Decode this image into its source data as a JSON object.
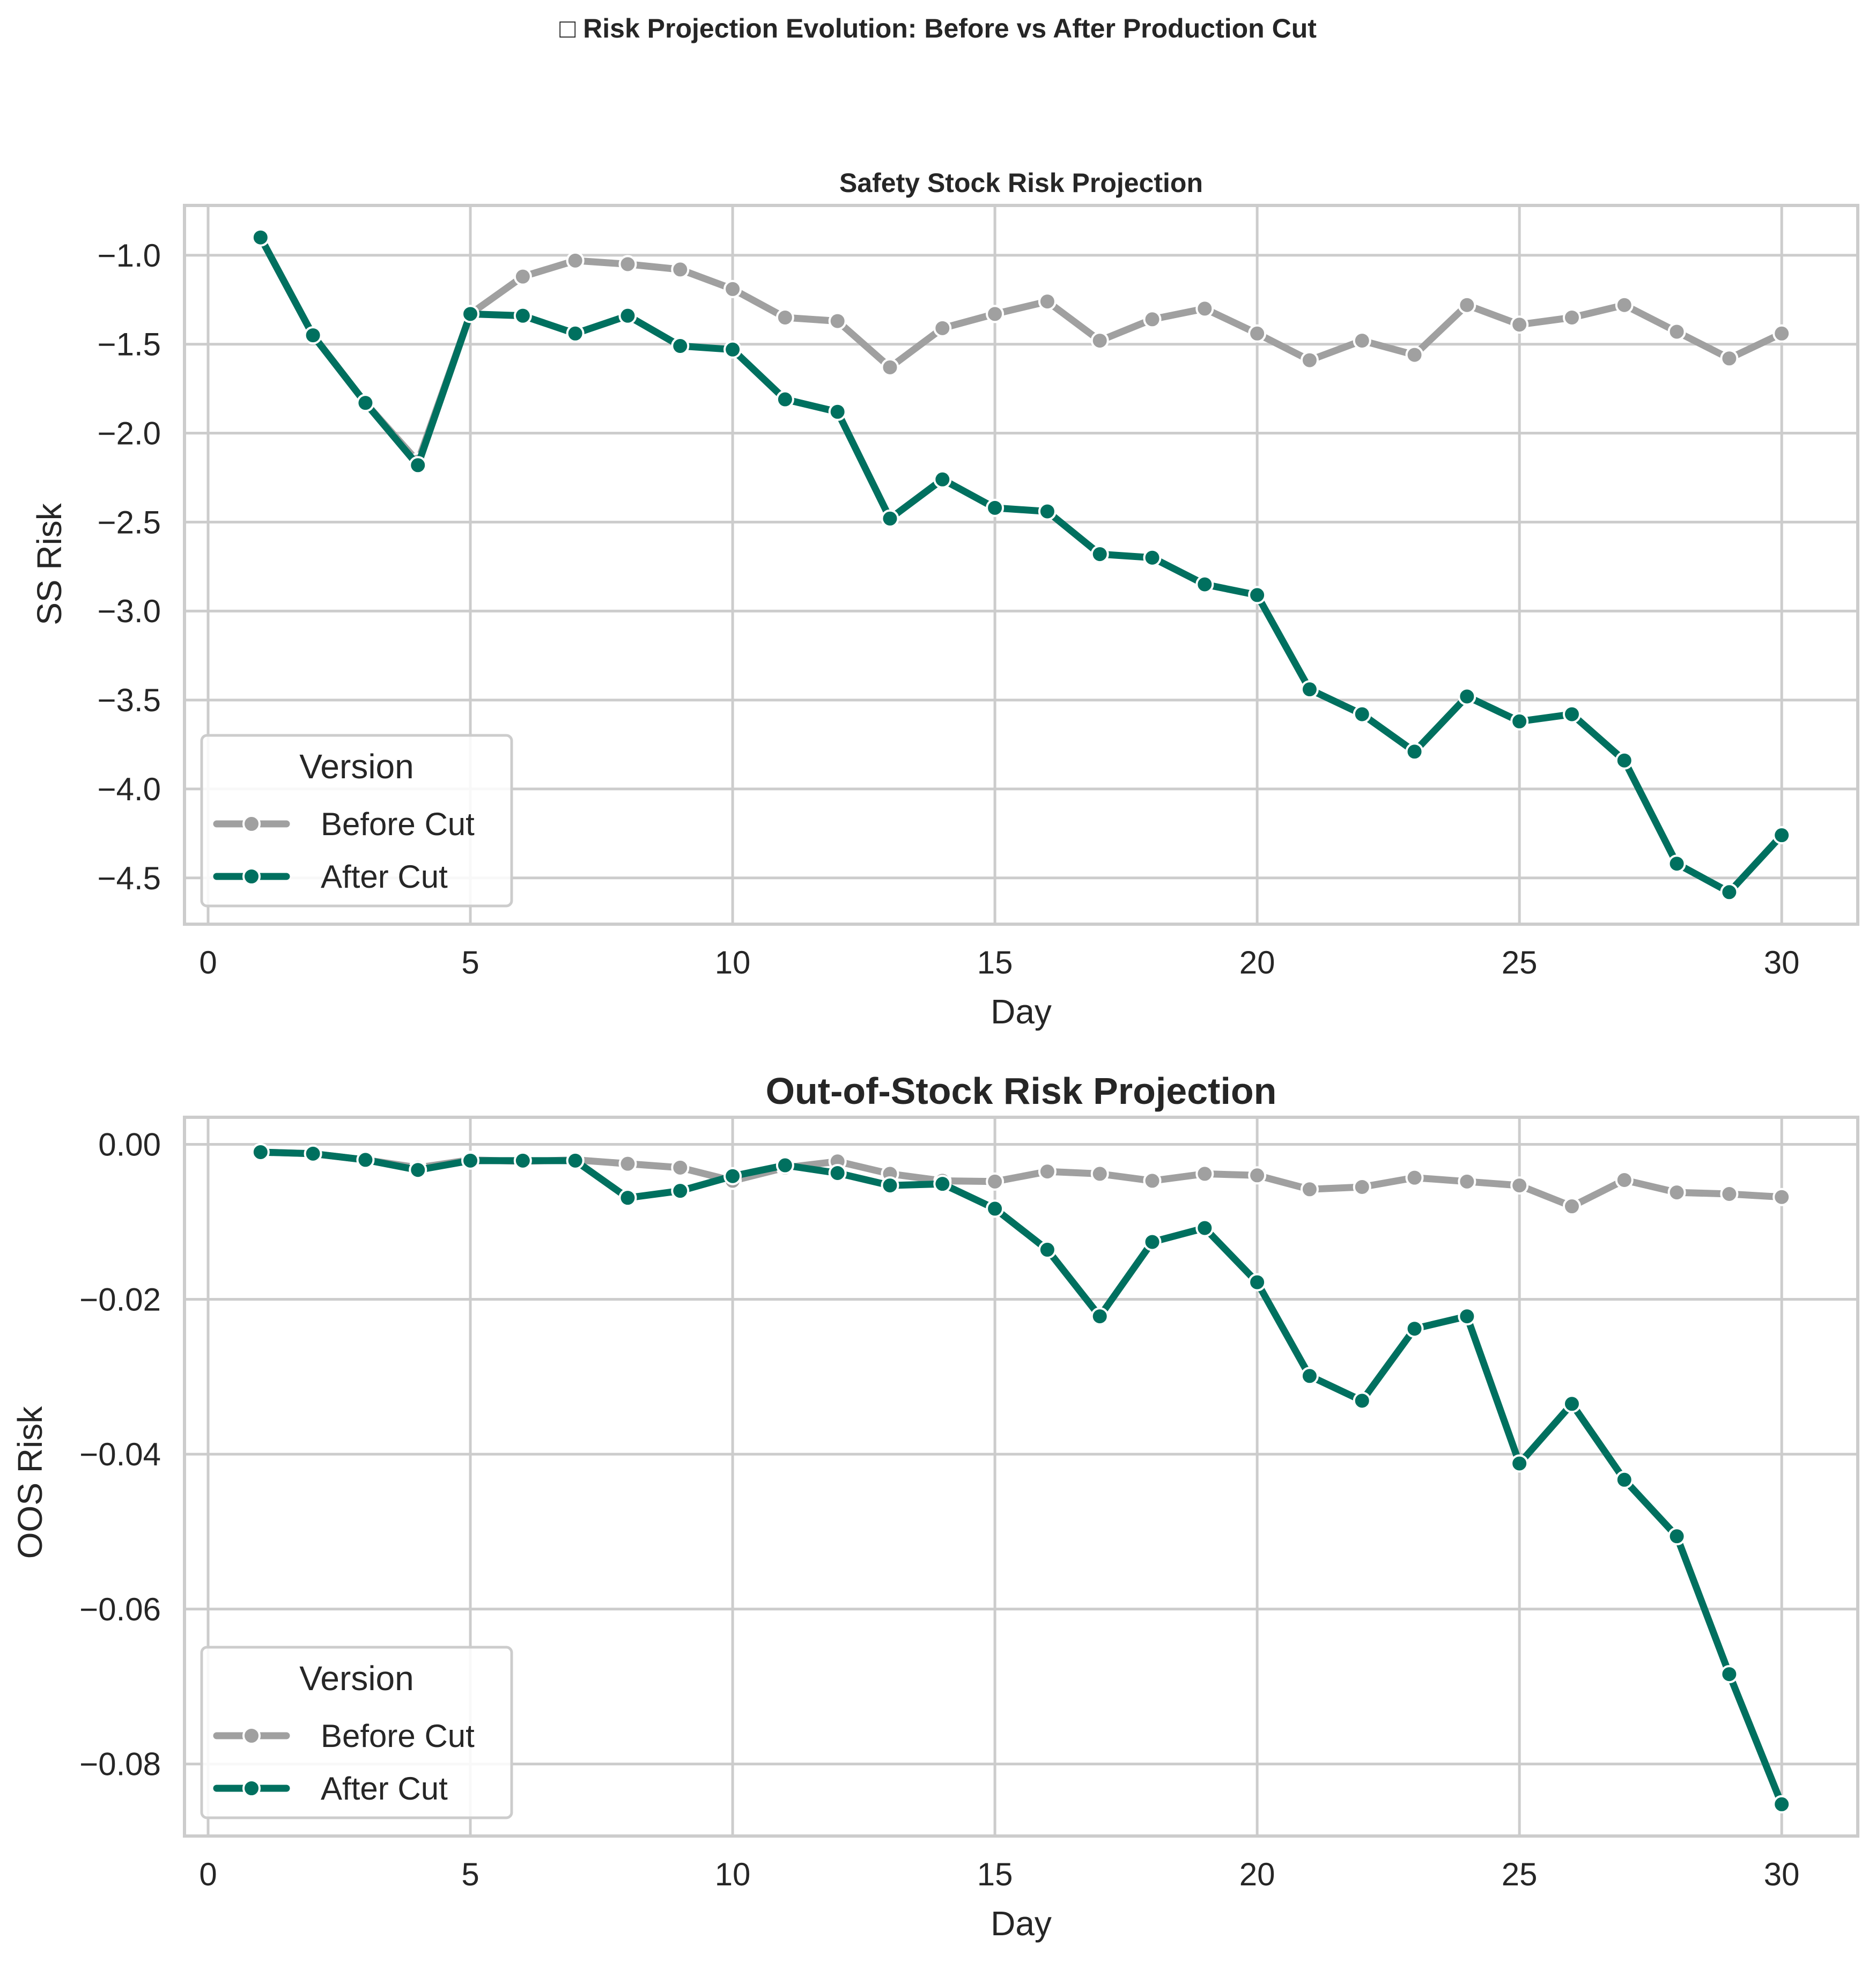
{
  "figure_title": "□ Risk Projection Evolution: Before vs After Production Cut",
  "colors": {
    "before": "#a0a0a0",
    "after": "#00705f",
    "grid": "#cccccc",
    "spine": "#cccccc",
    "text": "#262626"
  },
  "chart_data": [
    {
      "type": "line",
      "title": "Safety Stock Risk Projection",
      "xlabel": "Day",
      "ylabel": "SS Risk",
      "xlim": [
        -0.45,
        31.45
      ],
      "ylim": [
        -4.76,
        -0.72
      ],
      "xticks": [
        0,
        5,
        10,
        15,
        20,
        25,
        30
      ],
      "xtick_labels": [
        "0",
        "5",
        "10",
        "15",
        "20",
        "25",
        "30"
      ],
      "yticks": [
        -1.0,
        -1.5,
        -2.0,
        -2.5,
        -3.0,
        -3.5,
        -4.0,
        -4.5
      ],
      "ytick_labels": [
        "−1.0",
        "−1.5",
        "−2.0",
        "−2.5",
        "−3.0",
        "−3.5",
        "−4.0",
        "−4.5"
      ],
      "grid": true,
      "legend": {
        "title": "Version",
        "placement": "lower-left"
      },
      "x": [
        1,
        2,
        3,
        4,
        5,
        6,
        7,
        8,
        9,
        10,
        11,
        12,
        13,
        14,
        15,
        16,
        17,
        18,
        19,
        20,
        21,
        22,
        23,
        24,
        25,
        26,
        27,
        28,
        29,
        30
      ],
      "series": [
        {
          "name": "Before Cut",
          "color": "#a0a0a0",
          "values": [
            -0.9,
            -1.45,
            -1.83,
            -2.16,
            -1.33,
            -1.12,
            -1.03,
            -1.05,
            -1.08,
            -1.19,
            -1.35,
            -1.37,
            -1.63,
            -1.41,
            -1.33,
            -1.26,
            -1.48,
            -1.36,
            -1.3,
            -1.44,
            -1.59,
            -1.48,
            -1.56,
            -1.28,
            -1.39,
            -1.35,
            -1.28,
            -1.43,
            -1.58,
            -1.44
          ]
        },
        {
          "name": "After Cut",
          "color": "#00705f",
          "values": [
            -0.9,
            -1.45,
            -1.83,
            -2.18,
            -1.33,
            -1.34,
            -1.44,
            -1.34,
            -1.51,
            -1.53,
            -1.81,
            -1.88,
            -2.48,
            -2.26,
            -2.42,
            -2.44,
            -2.68,
            -2.7,
            -2.85,
            -2.91,
            -3.44,
            -3.58,
            -3.79,
            -3.48,
            -3.62,
            -3.58,
            -3.84,
            -4.42,
            -4.58,
            -4.26
          ]
        }
      ]
    },
    {
      "type": "line",
      "title": "Out-of-Stock Risk Projection",
      "xlabel": "Day",
      "ylabel": "OOS Risk",
      "xlim": [
        -0.45,
        31.45
      ],
      "ylim": [
        -0.0893,
        0.0035
      ],
      "xticks": [
        0,
        5,
        10,
        15,
        20,
        25,
        30
      ],
      "xtick_labels": [
        "0",
        "5",
        "10",
        "15",
        "20",
        "25",
        "30"
      ],
      "yticks": [
        0.0,
        -0.02,
        -0.04,
        -0.06,
        -0.08
      ],
      "ytick_labels": [
        "0.00",
        "−0.02",
        "−0.04",
        "−0.06",
        "−0.08"
      ],
      "grid": true,
      "legend": {
        "title": "Version",
        "placement": "lower-left"
      },
      "x": [
        1,
        2,
        3,
        4,
        5,
        6,
        7,
        8,
        9,
        10,
        11,
        12,
        13,
        14,
        15,
        16,
        17,
        18,
        19,
        20,
        21,
        22,
        23,
        24,
        25,
        26,
        27,
        28,
        29,
        30
      ],
      "series": [
        {
          "name": "Before Cut",
          "color": "#a0a0a0",
          "values": [
            -0.001,
            -0.0012,
            -0.002,
            -0.003,
            -0.002,
            -0.0022,
            -0.002,
            -0.0025,
            -0.003,
            -0.0047,
            -0.003,
            -0.0022,
            -0.0038,
            -0.0047,
            -0.0048,
            -0.0035,
            -0.0038,
            -0.0047,
            -0.0038,
            -0.004,
            -0.0058,
            -0.0055,
            -0.0043,
            -0.0048,
            -0.0053,
            -0.008,
            -0.0046,
            -0.0062,
            -0.0064,
            -0.0068
          ]
        },
        {
          "name": "After Cut",
          "color": "#00705f",
          "values": [
            -0.001,
            -0.0012,
            -0.002,
            -0.0033,
            -0.0021,
            -0.0021,
            -0.0021,
            -0.0069,
            -0.006,
            -0.0041,
            -0.0027,
            -0.0037,
            -0.0053,
            -0.0051,
            -0.0083,
            -0.0136,
            -0.0222,
            -0.0126,
            -0.0108,
            -0.0178,
            -0.0299,
            -0.0331,
            -0.0238,
            -0.0222,
            -0.0412,
            -0.0335,
            -0.0433,
            -0.0506,
            -0.0684,
            -0.0852
          ]
        }
      ]
    }
  ]
}
